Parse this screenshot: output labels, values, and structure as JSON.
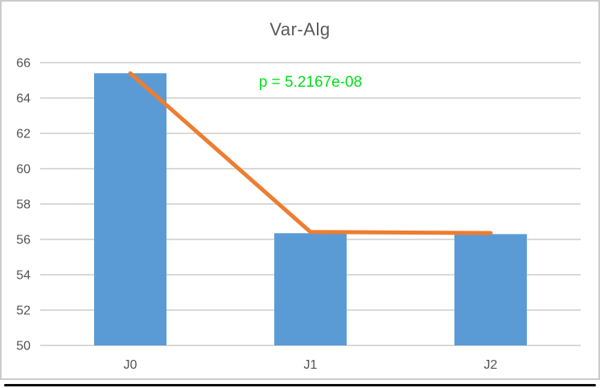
{
  "window": {
    "background": "#ffffff",
    "frame_border_color": "#cbcbcb",
    "bottom_edge_color": "#0b0b0b"
  },
  "chart_data": {
    "type": "bar",
    "title": "Var-Alg",
    "annotation": {
      "text": "p = 5.2167e-08",
      "color": "#00e019"
    },
    "categories": [
      "J0",
      "J1",
      "J2"
    ],
    "series": [
      {
        "name": "variance-bars",
        "type": "bar",
        "values": [
          65.4,
          56.35,
          56.3
        ],
        "color": "#5b9bd5"
      },
      {
        "name": "trend-line",
        "type": "line",
        "values": [
          65.4,
          56.42,
          56.36
        ],
        "color": "#ed7d31"
      }
    ],
    "xlabel": "",
    "ylabel": "",
    "ylim": [
      50,
      66
    ],
    "yticks": [
      50,
      52,
      54,
      56,
      58,
      60,
      62,
      64,
      66
    ],
    "grid": "horizontal",
    "legend": "none",
    "colors": {
      "gridline": "#d9d9d9",
      "tick_label": "#535353",
      "title": "#595959"
    }
  }
}
